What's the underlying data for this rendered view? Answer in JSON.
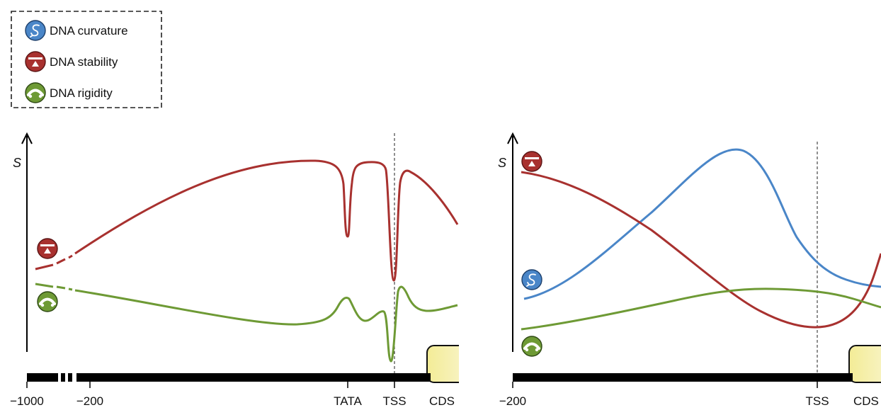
{
  "legend": {
    "items": [
      {
        "label": "DNA curvature",
        "icon": "dna-curvature-icon",
        "color": "#4a86c8"
      },
      {
        "label": "DNA stability",
        "icon": "dna-stability-icon",
        "color": "#a8312f"
      },
      {
        "label": "DNA rigidity",
        "icon": "dna-rigidity-icon",
        "color": "#6e9a35"
      }
    ]
  },
  "colors": {
    "curvature": "#4a86c8",
    "stability": "#a8312f",
    "rigidity": "#6e9a35",
    "cds_fill": "#f5eea0",
    "axis": "#000000"
  },
  "left_panel": {
    "y_axis_label": "S",
    "ticks": [
      "−1000",
      "−200",
      "TATA",
      "TSS",
      "CDS"
    ]
  },
  "right_panel": {
    "y_axis_label": "S",
    "ticks": [
      "−200",
      "TSS",
      "CDS"
    ]
  }
}
